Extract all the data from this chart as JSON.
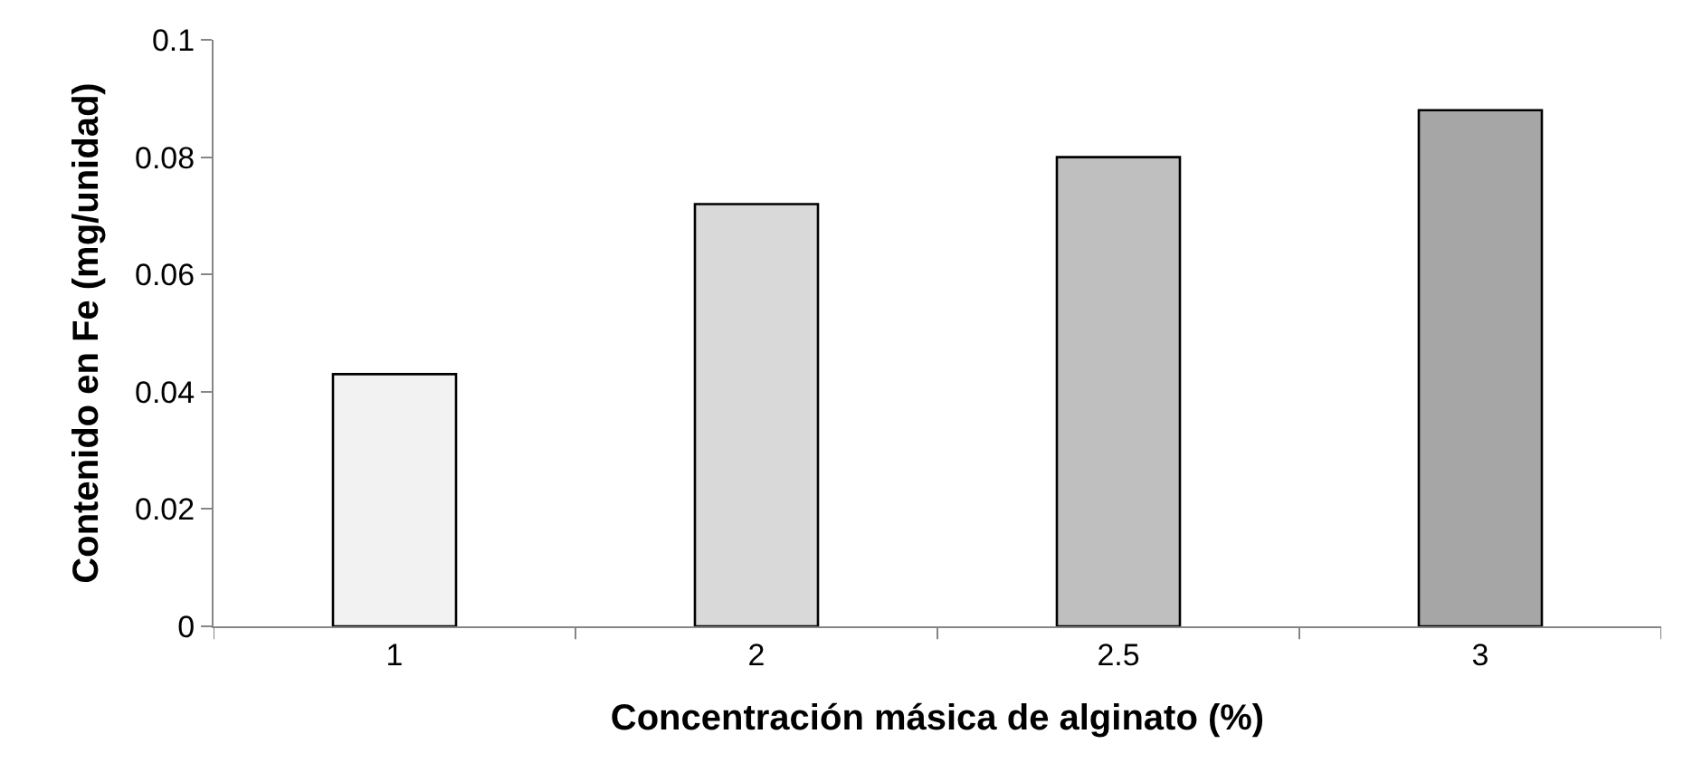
{
  "chart_data": {
    "type": "bar",
    "xlabel": "Concentración másica de alginato (%)",
    "ylabel": "Contenido en Fe (mg/unidad)",
    "categories": [
      "1",
      "2",
      "2.5",
      "3"
    ],
    "values": [
      0.043,
      0.072,
      0.08,
      0.088
    ],
    "colors": [
      "#f2f2f2",
      "#d9d9d9",
      "#bfbfbf",
      "#a6a6a6"
    ],
    "ylim": [
      0,
      0.1
    ],
    "yticks": [
      {
        "value": 0,
        "label": "0"
      },
      0.02,
      0.04,
      0.06,
      0.08,
      0.1
    ],
    "grid": false
  }
}
